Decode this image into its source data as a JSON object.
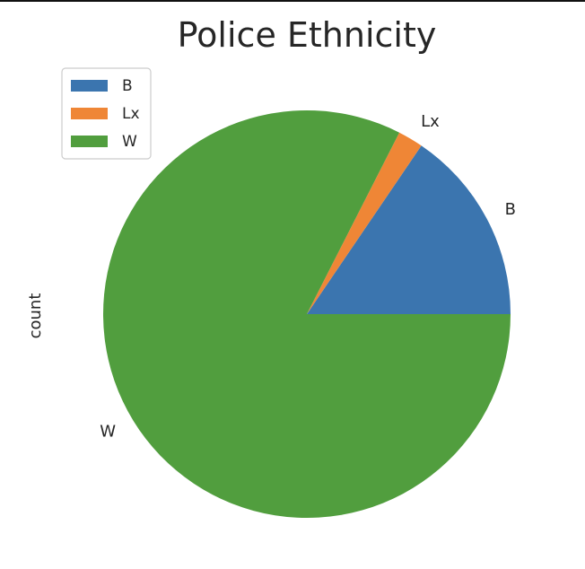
{
  "chart_data": {
    "type": "pie",
    "title": "Police Ethnicity",
    "ylabel": "count",
    "categories": [
      "B",
      "Lx",
      "W"
    ],
    "values": [
      15.5,
      2.0,
      82.5
    ],
    "colors": [
      "#3b75af",
      "#ef8636",
      "#519e3e"
    ],
    "start_angle_deg": 0,
    "direction": "counterclockwise",
    "legend": {
      "placement": "upper-left",
      "entries": [
        "B",
        "Lx",
        "W"
      ]
    }
  }
}
